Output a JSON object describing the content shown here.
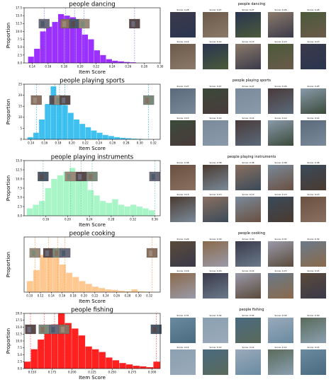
{
  "chart_data": [
    {
      "type": "bar",
      "title": "people dancing",
      "xlabel": "Item Score",
      "ylabel": "Proportion",
      "color": "#9b30ff",
      "xlim": [
        0.13,
        0.3
      ],
      "ylim": [
        0,
        17.5
      ],
      "bin_start": 0.135,
      "bin_width": 0.0075,
      "values": [
        2.0,
        4.5,
        10.0,
        11.5,
        13.0,
        15.5,
        15.0,
        14.5,
        11.0,
        9.0,
        7.5,
        4.0,
        2.5,
        1.2,
        0.7,
        0.5,
        0.3,
        0.2
      ],
      "xticks": [
        0.14,
        0.16,
        0.18,
        0.2,
        0.22,
        0.24,
        0.26,
        0.28,
        0.3
      ],
      "xtick_labels": [
        "0.14",
        "0.16",
        "0.18",
        "0.20",
        "0.22",
        "0.24",
        "0.26",
        "0.28",
        "0.30"
      ],
      "yticks": [
        0.0,
        2.5,
        5.0,
        7.5,
        10.0,
        12.5,
        15.0,
        17.5
      ],
      "ytick_labels": [
        "0.0",
        "2.5",
        "5.0",
        "7.5",
        "10.0",
        "12.5",
        "15.0",
        "17.5"
      ],
      "markers": [
        0.155,
        0.182,
        0.193,
        0.205,
        0.268
      ],
      "marker_color": "#7a7aff"
    },
    {
      "type": "bar",
      "title": "people playing sports",
      "xlabel": "Item Score",
      "ylabel": "Proportion",
      "color": "#3ec0f0",
      "xlim": [
        0.13,
        0.33
      ],
      "ylim": [
        0,
        25
      ],
      "bin_start": 0.135,
      "bin_width": 0.0085,
      "values": [
        1.0,
        3.0,
        9.0,
        16.0,
        24.0,
        19.0,
        15.5,
        12.0,
        9.0,
        7.0,
        5.5,
        4.0,
        3.0,
        2.0,
        1.5,
        1.0,
        0.7,
        0.5,
        0.3,
        0.2
      ],
      "xticks": [
        0.14,
        0.16,
        0.18,
        0.2,
        0.22,
        0.24,
        0.26,
        0.28,
        0.3,
        0.32
      ],
      "xtick_labels": [
        "0.14",
        "0.16",
        "0.18",
        "0.20",
        "0.22",
        "0.24",
        "0.26",
        "0.28",
        "0.30",
        "0.32"
      ],
      "yticks": [
        0,
        5,
        10,
        15,
        20,
        25
      ],
      "ytick_labels": [
        "0",
        "5",
        "10",
        "15",
        "20",
        "25"
      ],
      "markers": [
        0.148,
        0.175,
        0.182,
        0.19,
        0.313
      ],
      "marker_color": "#2ab0d8"
    },
    {
      "type": "bar",
      "title": "people playing instruments",
      "xlabel": "Item Score",
      "ylabel": "Proportion",
      "color": "#a8f5c8",
      "xlim": [
        0.12,
        0.37
      ],
      "ylim": [
        0,
        15
      ],
      "bin_start": 0.125,
      "bin_width": 0.0112,
      "values": [
        2.0,
        3.0,
        4.0,
        7.5,
        10.0,
        11.0,
        12.0,
        13.0,
        11.5,
        9.5,
        7.0,
        5.5,
        4.0,
        3.5,
        4.5,
        3.0,
        2.5,
        3.0,
        2.5,
        2.0,
        1.5
      ],
      "xticks": [
        0.16,
        0.2,
        0.24,
        0.28,
        0.32,
        0.36
      ],
      "xtick_labels": [
        "0.16",
        "0.20",
        "0.24",
        "0.28",
        "0.32",
        "0.36"
      ],
      "yticks": [
        0.0,
        2.5,
        5.0,
        7.5,
        10.0,
        12.5,
        15.0
      ],
      "ytick_labels": [
        "0.0",
        "2.5",
        "5.0",
        "7.5",
        "10.0",
        "12.5",
        "15.0"
      ],
      "markers": [
        0.155,
        0.205,
        0.225,
        0.245,
        0.36
      ],
      "marker_color": "#66cc99"
    },
    {
      "type": "bar",
      "title": "people cooking",
      "xlabel": "Item Score",
      "ylabel": "Proportion",
      "color": "#ffc890",
      "xlim": [
        0.09,
        0.34
      ],
      "ylim": [
        0,
        20
      ],
      "bin_start": 0.095,
      "bin_width": 0.012,
      "values": [
        4.0,
        8.0,
        13.5,
        14.5,
        12.5,
        10.0,
        7.0,
        5.5,
        4.0,
        3.0,
        2.0,
        1.5,
        1.0,
        0.8,
        0.5,
        0.3,
        1.0,
        0.3,
        0.2,
        0.1
      ],
      "xticks": [
        0.1,
        0.12,
        0.14,
        0.16,
        0.18,
        0.2,
        0.22,
        0.24,
        0.26,
        0.28,
        0.3,
        0.32
      ],
      "xtick_labels": [
        "0.10",
        "0.12",
        "0.14",
        "0.16",
        "0.18",
        "0.20",
        "0.22",
        "0.24",
        "0.26",
        "0.28",
        "0.30",
        "0.32"
      ],
      "yticks": [],
      "ytick_labels": [],
      "markers": [
        0.11,
        0.135,
        0.152,
        0.165,
        0.325
      ],
      "marker_color": "#ff9940"
    },
    {
      "type": "bar",
      "title": "people fishing",
      "xlabel": "Item Score",
      "ylabel": "Proportion",
      "color": "#ff2020",
      "xlim": [
        0.14,
        0.31
      ],
      "ylim": [
        0,
        20
      ],
      "bin_start": 0.14,
      "bin_width": 0.0085,
      "values": [
        2.5,
        7.0,
        10.5,
        14.5,
        16.0,
        20.0,
        16.5,
        14.5,
        12.0,
        8.0,
        7.0,
        6.0,
        4.0,
        3.0,
        2.0,
        1.5,
        1.0,
        0.8,
        0.5,
        2.5
      ],
      "xticks": [
        0.15,
        0.175,
        0.2,
        0.225,
        0.25,
        0.275,
        0.3
      ],
      "xtick_labels": [
        "0.150",
        "0.175",
        "0.200",
        "0.225",
        "0.250",
        "0.275",
        "0.300"
      ],
      "yticks": [
        0.0,
        2.5,
        5.0,
        7.5,
        10.0,
        12.5,
        15.0,
        17.5,
        20.0
      ],
      "ytick_labels": [
        "0.0",
        "2.5",
        "5.0",
        "7.5",
        "10.0",
        "12.5",
        "15.0",
        "17.5",
        "20.0"
      ],
      "markers": [
        0.148,
        0.165,
        0.178,
        0.19,
        0.305
      ],
      "marker_color": "#ff4040"
    }
  ],
  "grids": [
    {
      "title": "people dancing",
      "top_scores": [
        "Score: 0.28",
        "Score: 0.27",
        "Score: 0.27",
        "Score: 0.26",
        "Score: 0.26"
      ],
      "bottom_scores": [
        "Score: 0.14",
        "Score: 0.14",
        "Score: 0.13",
        "Score: 0.13",
        "Score: 0.13"
      ],
      "palette": [
        "#3b3a4a",
        "#6b5a4a",
        "#2a3550",
        "#8a7a6a",
        "#4a5a3a"
      ]
    },
    {
      "title": "people playing sports",
      "top_scores": [
        "Score: 0.27",
        "Score: 0.27",
        "Score: 0.27",
        "Score: 0.26",
        "Score: 0.25"
      ],
      "bottom_scores": [
        "Score: 0.13",
        "Score: 0.14",
        "Score: 0.14",
        "Score: 0.14",
        "Score: 0.14"
      ],
      "palette": [
        "#5a6a7a",
        "#3a4a3a",
        "#7a8a9a",
        "#4a3a3a",
        "#8a9aaa"
      ]
    },
    {
      "title": "people playing instruments",
      "top_scores": [
        "Score: 0.38",
        "Score: 0.38",
        "Score: 0.38",
        "Score: 0.38",
        "Score: 0.38"
      ],
      "bottom_scores": [
        "Score: 0.13",
        "Score: 0.13",
        "Score: 0.13",
        "Score: 0.13",
        "Score: 0.13"
      ],
      "palette": [
        "#6a5040",
        "#4a3a30",
        "#8a7060",
        "#7a8a9a",
        "#3a4a5a"
      ]
    },
    {
      "title": "people cooking",
      "top_scores": [
        "Score: 0.29",
        "Score: 0.30",
        "Score: 0.30",
        "Score: 0.31",
        "Score: 0.32"
      ],
      "bottom_scores": [
        "Score: 0.16",
        "Score: 0.16",
        "Score: 0.14",
        "Score: 0.15",
        "Score: 0.15"
      ],
      "palette": [
        "#5a4a3a",
        "#8a6a4a",
        "#3a3a4a",
        "#9a9aaa",
        "#6a7a8a"
      ]
    },
    {
      "title": "people fishing",
      "top_scores": [
        "Score: 0.31",
        "Score: 0.32",
        "Score: 0.32",
        "Score: 0.30",
        "Score: 0.30"
      ],
      "bottom_scores": [
        "Score: 0.14",
        "Score: 0.14",
        "Score: 0.14",
        "Score: 0.14",
        "Score: 0.14"
      ],
      "palette": [
        "#6a8aa0",
        "#8aa0b0",
        "#4a6a80",
        "#9aaabb",
        "#5a6a5a"
      ]
    }
  ]
}
